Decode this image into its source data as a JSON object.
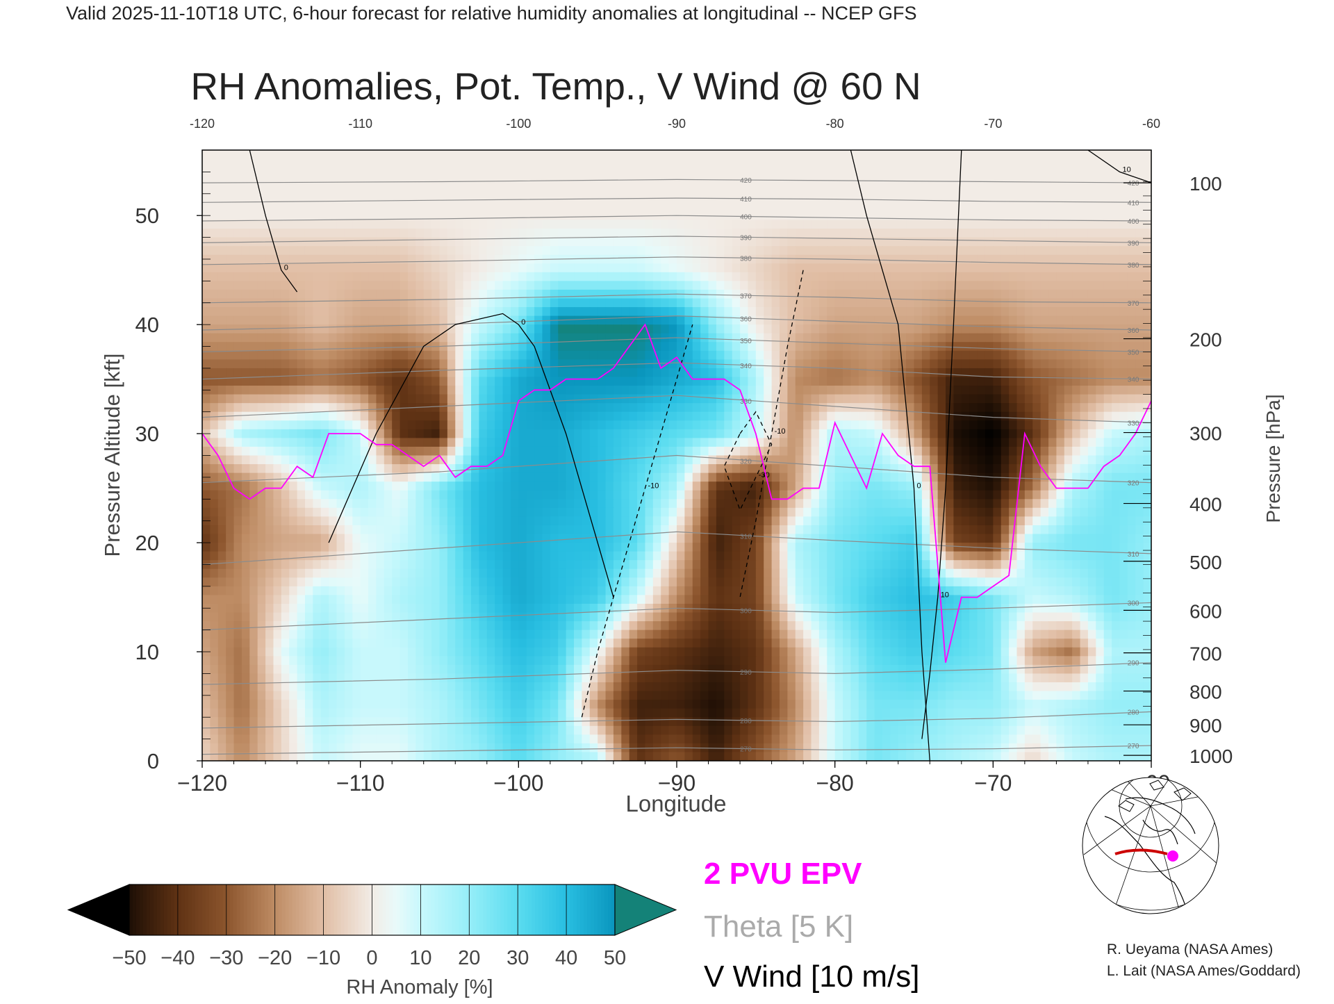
{
  "header": {
    "valid_line": "Valid 2025-11-10T18 UTC, 6-hour forecast for relative humidity anomalies at longitudinal -- NCEP GFS"
  },
  "chart_data": {
    "type": "heatmap",
    "title": "RH Anomalies, Pot. Temp., V Wind @ 60 N",
    "xlabel": "Longitude",
    "ylabel_left": "Pressure Altitude [kft]",
    "ylabel_right": "Pressure [hPa]",
    "xlim": [
      -120,
      -60
    ],
    "ylim": [
      0,
      56
    ],
    "x_ticks_bottom": [
      "-120",
      "-110",
      "-100",
      "-90",
      "-80",
      "-70",
      "-60"
    ],
    "x_ticks_top": [
      "-120",
      "-110",
      "-100",
      "-90",
      "-80",
      "-70",
      "-60"
    ],
    "y_ticks_left": [
      "0",
      "10",
      "20",
      "30",
      "40",
      "50"
    ],
    "pressure_ticks": [
      {
        "hPa": 100,
        "label": "100",
        "kft": 53
      },
      {
        "hPa": 200,
        "label": "200",
        "kft": 38.7
      },
      {
        "hPa": 300,
        "label": "300",
        "kft": 30.1
      },
      {
        "hPa": 400,
        "label": "400",
        "kft": 23.6
      },
      {
        "hPa": 500,
        "label": "500",
        "kft": 18.3
      },
      {
        "hPa": 600,
        "label": "600",
        "kft": 13.8
      },
      {
        "hPa": 700,
        "label": "700",
        "kft": 9.9
      },
      {
        "hPa": 800,
        "label": "800",
        "kft": 6.4
      },
      {
        "hPa": 900,
        "label": "900",
        "kft": 3.3
      },
      {
        "hPa": 1000,
        "label": "1000",
        "kft": 0.5
      }
    ],
    "rh_anomaly_field": {
      "x": [
        -120,
        -117.5,
        -115,
        -112.5,
        -110,
        -107.5,
        -105,
        -102.5,
        -100,
        -97.5,
        -95,
        -92.5,
        -90,
        -87.5,
        -85,
        -82.5,
        -80,
        -77.5,
        -75,
        -72.5,
        -70,
        -67.5,
        -65,
        -62.5,
        -60
      ],
      "y": [
        0,
        5,
        10,
        15,
        20,
        25,
        30,
        35,
        40,
        45,
        50,
        56
      ],
      "values": [
        [
          -5,
          -20,
          -5,
          10,
          5,
          5,
          15,
          20,
          30,
          20,
          15,
          -40,
          -30,
          -45,
          -30,
          -15,
          10,
          25,
          20,
          15,
          10,
          -5,
          10,
          15,
          15
        ],
        [
          -10,
          -25,
          -5,
          15,
          10,
          10,
          15,
          25,
          35,
          25,
          -20,
          -45,
          -45,
          -50,
          -40,
          -20,
          10,
          25,
          25,
          20,
          20,
          10,
          15,
          20,
          20
        ],
        [
          -15,
          -25,
          5,
          20,
          10,
          10,
          20,
          30,
          40,
          35,
          5,
          -35,
          -40,
          -45,
          -40,
          -15,
          15,
          30,
          35,
          30,
          25,
          -15,
          -25,
          15,
          15
        ],
        [
          -20,
          -20,
          -5,
          15,
          5,
          15,
          20,
          35,
          45,
          40,
          35,
          10,
          -20,
          -40,
          -35,
          10,
          25,
          35,
          40,
          35,
          25,
          10,
          15,
          25,
          20
        ],
        [
          -40,
          -20,
          -15,
          -15,
          5,
          10,
          20,
          40,
          45,
          40,
          40,
          30,
          -5,
          -45,
          -35,
          15,
          25,
          30,
          35,
          -35,
          -40,
          20,
          25,
          25,
          20
        ],
        [
          -30,
          -25,
          -10,
          10,
          15,
          5,
          25,
          40,
          45,
          45,
          40,
          30,
          15,
          -40,
          -45,
          -15,
          20,
          25,
          20,
          -45,
          -50,
          -25,
          15,
          25,
          25
        ],
        [
          -10,
          15,
          20,
          25,
          10,
          -40,
          -45,
          35,
          45,
          45,
          40,
          35,
          30,
          25,
          10,
          -20,
          15,
          10,
          -15,
          -50,
          -55,
          -40,
          -10,
          10,
          15
        ],
        [
          -30,
          -30,
          -30,
          -25,
          -30,
          -40,
          -30,
          30,
          45,
          50,
          50,
          50,
          45,
          40,
          15,
          -20,
          -25,
          -20,
          -30,
          -45,
          -45,
          -30,
          -25,
          -20,
          -20
        ],
        [
          -15,
          -15,
          -15,
          -10,
          -15,
          -15,
          -10,
          10,
          25,
          55,
          55,
          55,
          50,
          20,
          0,
          -10,
          -15,
          -15,
          -15,
          -20,
          -20,
          -15,
          -15,
          -15,
          -15
        ],
        [
          -10,
          -10,
          -10,
          -10,
          -10,
          -10,
          -5,
          0,
          5,
          10,
          10,
          10,
          5,
          0,
          -5,
          -10,
          -10,
          -10,
          -10,
          -10,
          -10,
          -10,
          -10,
          -10,
          -10
        ],
        [
          0,
          0,
          0,
          0,
          0,
          0,
          0,
          0,
          0,
          0,
          0,
          0,
          0,
          0,
          0,
          0,
          0,
          0,
          0,
          0,
          0,
          0,
          0,
          0,
          0
        ],
        [
          0,
          0,
          0,
          0,
          0,
          0,
          0,
          0,
          0,
          0,
          0,
          0,
          0,
          0,
          0,
          0,
          0,
          0,
          0,
          0,
          0,
          0,
          0,
          0,
          0
        ]
      ]
    },
    "theta_contours": [
      {
        "label": "270",
        "x": [
          -120,
          -105,
          -90,
          -80,
          -70,
          -60
        ],
        "y": [
          0.6,
          0.9,
          1.2,
          1.0,
          1.1,
          1.4
        ]
      },
      {
        "label": "280",
        "x": [
          -120,
          -105,
          -90,
          -80,
          -70,
          -60
        ],
        "y": [
          3.0,
          3.4,
          3.8,
          3.6,
          3.9,
          4.5
        ]
      },
      {
        "label": "290",
        "x": [
          -120,
          -105,
          -90,
          -80,
          -70,
          -60
        ],
        "y": [
          7.0,
          7.5,
          8.3,
          8.0,
          8.4,
          9.0
        ]
      },
      {
        "label": "300",
        "x": [
          -120,
          -105,
          -90,
          -80,
          -70,
          -60
        ],
        "y": [
          12.0,
          13.0,
          14.0,
          13.6,
          14.0,
          14.5
        ]
      },
      {
        "label": "310",
        "x": [
          -120,
          -105,
          -90,
          -80,
          -70,
          -60
        ],
        "y": [
          18.0,
          19.5,
          21.0,
          20.2,
          19.5,
          19.0
        ]
      },
      {
        "label": "320",
        "x": [
          -120,
          -105,
          -90,
          -80,
          -70,
          -60
        ],
        "y": [
          25.5,
          26.5,
          28.0,
          27.0,
          26.0,
          25.5
        ]
      },
      {
        "label": "330",
        "x": [
          -120,
          -105,
          -90,
          -80,
          -70,
          -60
        ],
        "y": [
          31.5,
          32.5,
          33.5,
          32.5,
          31.5,
          31.0
        ]
      },
      {
        "label": "340",
        "x": [
          -120,
          -105,
          -90,
          -80,
          -70,
          -60
        ],
        "y": [
          35.0,
          35.8,
          36.5,
          36.0,
          35.2,
          35.0
        ]
      },
      {
        "label": "350",
        "x": [
          -120,
          -105,
          -90,
          -80,
          -70,
          -60
        ],
        "y": [
          37.5,
          38.0,
          38.8,
          38.3,
          37.8,
          37.5
        ]
      },
      {
        "label": "360",
        "x": [
          -120,
          -105,
          -90,
          -80,
          -70,
          -60
        ],
        "y": [
          39.5,
          40.0,
          40.8,
          40.3,
          39.8,
          39.5
        ]
      },
      {
        "label": "370",
        "x": [
          -120,
          -105,
          -90,
          -80,
          -70,
          -60
        ],
        "y": [
          42.0,
          42.3,
          42.8,
          42.5,
          42.1,
          42.0
        ]
      },
      {
        "label": "380",
        "x": [
          -120,
          -105,
          -90,
          -80,
          -70,
          -60
        ],
        "y": [
          45.5,
          45.8,
          46.2,
          46.0,
          45.7,
          45.5
        ]
      },
      {
        "label": "390",
        "x": [
          -120,
          -105,
          -90,
          -80,
          -70,
          -60
        ],
        "y": [
          47.5,
          47.8,
          48.1,
          47.9,
          47.7,
          47.5
        ]
      },
      {
        "label": "400",
        "x": [
          -120,
          -105,
          -90,
          -80,
          -70,
          -60
        ],
        "y": [
          49.5,
          49.7,
          50.0,
          49.8,
          49.6,
          49.5
        ]
      },
      {
        "label": "410",
        "x": [
          -120,
          -105,
          -90,
          -80,
          -70,
          -60
        ],
        "y": [
          51.2,
          51.4,
          51.6,
          51.5,
          51.3,
          51.2
        ]
      },
      {
        "label": "420",
        "x": [
          -120,
          -105,
          -90,
          -80,
          -70,
          -60
        ],
        "y": [
          53.0,
          53.1,
          53.3,
          53.2,
          53.1,
          53.0
        ]
      }
    ],
    "epv_2pvu": {
      "x": [
        -120,
        -119,
        -118,
        -117,
        -116,
        -115,
        -114,
        -113,
        -112,
        -111,
        -110,
        -109,
        -108,
        -107,
        -106,
        -105,
        -104,
        -103,
        -102,
        -101,
        -100,
        -99,
        -98,
        -97,
        -96,
        -95,
        -94,
        -93,
        -92,
        -91,
        -90,
        -89,
        -88,
        -87,
        -86,
        -85,
        -84,
        -83,
        -82,
        -81,
        -80,
        -79,
        -78,
        -77,
        -76,
        -75,
        -74,
        -73,
        -72,
        -71,
        -70,
        -69,
        -68,
        -67,
        -66,
        -65,
        -64,
        -63,
        -62,
        -61,
        -60
      ],
      "y": [
        30,
        28,
        25,
        24,
        25,
        25,
        27,
        26,
        30,
        30,
        30,
        29,
        29,
        28,
        27,
        28,
        26,
        27,
        27,
        28,
        33,
        34,
        34,
        35,
        35,
        35,
        36,
        38,
        40,
        36,
        37,
        35,
        35,
        35,
        34,
        30,
        24,
        24,
        25,
        25,
        31,
        28,
        25,
        30,
        28,
        27,
        27,
        9,
        15,
        15,
        16,
        17,
        30,
        27,
        25,
        25,
        25,
        27,
        28,
        30,
        33
      ]
    },
    "v_wind_contours": [
      {
        "label": "0",
        "x": [
          -117,
          -116,
          -115,
          -114
        ],
        "y": [
          56,
          50,
          45,
          43
        ]
      },
      {
        "label": "0",
        "x": [
          -112,
          -109,
          -106,
          -104,
          -101,
          -100,
          -99,
          -97,
          -95,
          -94
        ],
        "y": [
          20,
          30,
          38,
          40,
          41,
          40,
          38,
          30,
          20,
          15
        ]
      },
      {
        "label": "-10",
        "x": [
          -96,
          -95,
          -94,
          -92,
          -90,
          -89
        ],
        "y": [
          4,
          10,
          15,
          25,
          35,
          40
        ]
      },
      {
        "label": "10",
        "x": [
          -72,
          -72.5,
          -73,
          -73.5,
          -74,
          -74.5
        ],
        "y": [
          56,
          40,
          25,
          15,
          8,
          2
        ]
      },
      {
        "label": "0",
        "x": [
          -79,
          -78,
          -76,
          -75,
          -74.5,
          -74
        ],
        "y": [
          56,
          50,
          40,
          25,
          10,
          0
        ]
      },
      {
        "label": "-10",
        "x": [
          -82,
          -83,
          -84,
          -85,
          -86
        ],
        "y": [
          45,
          38,
          30,
          22,
          15
        ]
      },
      {
        "label": "-30",
        "x": [
          -86,
          -85,
          -84,
          -85,
          -86,
          -87,
          -86
        ],
        "y": [
          30,
          32,
          29,
          26,
          23,
          27,
          30
        ]
      },
      {
        "label": "10",
        "x": [
          -64,
          -62,
          -60
        ],
        "y": [
          56,
          54,
          53
        ]
      }
    ],
    "legend": {
      "colorbar_ticks": [
        "-50",
        "-40",
        "-30",
        "-20",
        "-10",
        "0",
        "10",
        "20",
        "30",
        "40",
        "50"
      ],
      "colorbar_label": "RH Anomaly [%]",
      "epv_label": "2 PVU EPV",
      "theta_label": "Theta [5 K]",
      "wind_label": "V Wind [10 m/s]"
    }
  },
  "credits": {
    "line1": "R. Ueyama (NASA Ames)",
    "line2": "L. Lait (NASA Ames/Goddard)"
  },
  "colors": {
    "epv": "#ff00ff",
    "theta": "#8c8c8c",
    "wind": "#000000",
    "marker": "#ff00ff",
    "section_line": "#cc0000"
  }
}
